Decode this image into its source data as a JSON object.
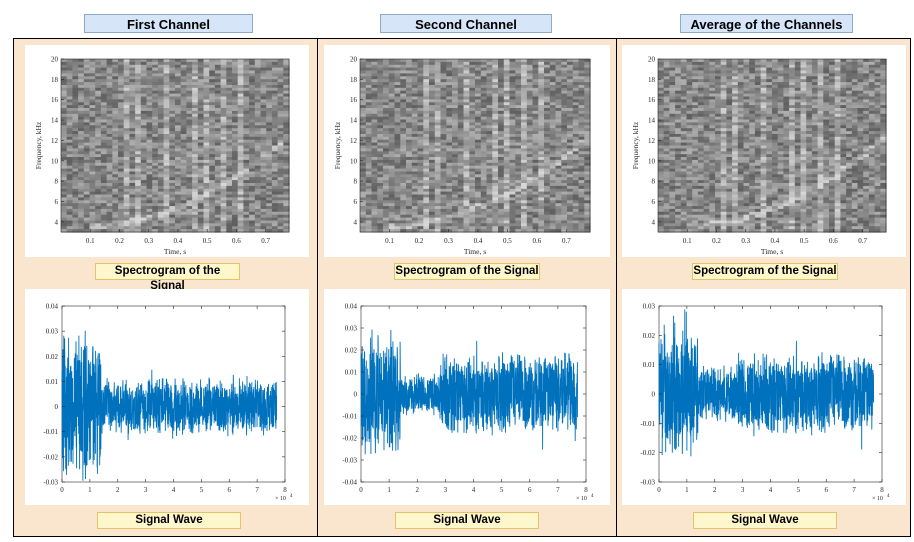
{
  "panels": [
    {
      "title": "First Channel",
      "spec_label": "Spectrogram of the Signal",
      "wave_label": "Signal Wave",
      "wave_yticks": [
        "0.04",
        "0.03",
        "0.02",
        "0.01",
        "0",
        "-0.01",
        "-0.02",
        "-0.03"
      ],
      "wave_ymax": 0.04,
      "wave_ymin": -0.03
    },
    {
      "title": "Second Channel",
      "spec_label": "Spectrogram of the Signal",
      "wave_label": "Signal Wave",
      "wave_yticks": [
        "0.04",
        "0.03",
        "0.02",
        "0.01",
        "0",
        "-0.01",
        "-0.02",
        "-0.03",
        "-0.04"
      ],
      "wave_ymax": 0.04,
      "wave_ymin": -0.04
    },
    {
      "title": "Average of the Channels",
      "spec_label": "Spectrogram of the Signal",
      "wave_label": "Signal Wave",
      "wave_yticks": [
        "0.03",
        "0.02",
        "0.01",
        "0",
        "-0.01",
        "-0.02",
        "-0.03"
      ],
      "wave_ymax": 0.03,
      "wave_ymin": -0.03
    }
  ],
  "spectrogram": {
    "ylabel": "Frequency, kHz",
    "xlabel": "Time, s",
    "yticks": [
      "20",
      "18",
      "16",
      "14",
      "12",
      "10",
      "8",
      "6",
      "4"
    ],
    "xticks": [
      "0.1",
      "0.2",
      "0.3",
      "0.4",
      "0.5",
      "0.6",
      "0.7"
    ]
  },
  "wave": {
    "xticks": [
      "0",
      "1",
      "2",
      "3",
      "4",
      "5",
      "6",
      "7",
      "8"
    ],
    "exponent": "× 10",
    "exponent_power": "4"
  },
  "chart_data": [
    {
      "type": "heatmap",
      "title": "",
      "xlabel": "Time, s",
      "ylabel": "Frequency, kHz",
      "xlim": [
        0,
        0.78
      ],
      "ylim": [
        3,
        20
      ]
    },
    {
      "type": "line",
      "title": "",
      "xlabel": "",
      "ylabel": "",
      "xlim": [
        0,
        80000
      ],
      "ylim": [
        -0.03,
        0.04
      ],
      "series": [
        {
          "envelope_segments": [
            {
              "x": [
                0,
                14000
              ],
              "amp": 0.03
            },
            {
              "x": [
                14000,
                80000
              ],
              "amp": 0.012
            }
          ]
        }
      ]
    },
    {
      "type": "line",
      "title": "",
      "xlabel": "",
      "ylabel": "",
      "xlim": [
        0,
        80000
      ],
      "ylim": [
        -0.04,
        0.04
      ],
      "series": [
        {
          "envelope_segments": [
            {
              "x": [
                0,
                14000
              ],
              "amp": 0.03
            },
            {
              "x": [
                14000,
                28000
              ],
              "amp": 0.01
            },
            {
              "x": [
                28000,
                80000
              ],
              "amp": 0.02
            }
          ]
        }
      ]
    },
    {
      "type": "line",
      "title": "",
      "xlabel": "",
      "ylabel": "",
      "xlim": [
        0,
        80000
      ],
      "ylim": [
        -0.03,
        0.03
      ],
      "series": [
        {
          "envelope_segments": [
            {
              "x": [
                0,
                14000
              ],
              "amp": 0.025
            },
            {
              "x": [
                14000,
                28000
              ],
              "amp": 0.01
            },
            {
              "x": [
                28000,
                80000
              ],
              "amp": 0.015
            }
          ]
        }
      ]
    }
  ]
}
